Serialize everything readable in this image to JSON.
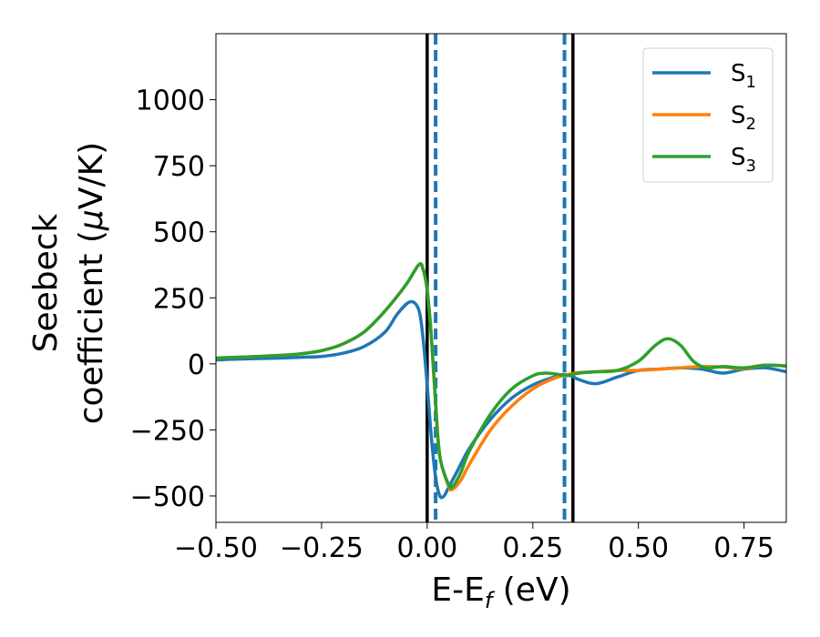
{
  "chart_data": {
    "type": "line",
    "xlabel": "E-E",
    "xlabel_subscript": "f",
    "xlabel_unit": " (eV)",
    "ylabel_line1": "Seebeck",
    "ylabel_line2": "coefficient  (",
    "ylabel_mu": "μ",
    "ylabel_unit": "V/K)",
    "xlim": [
      -0.5,
      0.85
    ],
    "ylim": [
      -600,
      1250
    ],
    "xticks": [
      -0.5,
      -0.25,
      0.0,
      0.25,
      0.5,
      0.75
    ],
    "xtick_labels": [
      "−0.50",
      "−0.25",
      "0.00",
      "0.25",
      "0.50",
      "0.75"
    ],
    "yticks": [
      -500,
      -250,
      0,
      250,
      500,
      750,
      1000
    ],
    "ytick_labels": [
      "−500",
      "−250",
      "0",
      "250",
      "500",
      "750",
      "1000"
    ],
    "grid": false,
    "legend_position": "top-right",
    "vertical_lines": [
      {
        "x": 0.0,
        "style": "solid",
        "color": "#000000"
      },
      {
        "x": 0.02,
        "style": "dashed",
        "color": "#1f77b4"
      },
      {
        "x": 0.325,
        "style": "dashed",
        "color": "#1f77b4"
      },
      {
        "x": 0.345,
        "style": "solid",
        "color": "#000000"
      }
    ],
    "series": [
      {
        "name": "S",
        "subscript": "1",
        "color": "#1f77b4",
        "points": [
          [
            -0.5,
            15
          ],
          [
            -0.45,
            18
          ],
          [
            -0.4,
            20
          ],
          [
            -0.35,
            22
          ],
          [
            -0.3,
            25
          ],
          [
            -0.25,
            28
          ],
          [
            -0.2,
            40
          ],
          [
            -0.15,
            65
          ],
          [
            -0.1,
            120
          ],
          [
            -0.07,
            190
          ],
          [
            -0.04,
            235
          ],
          [
            -0.02,
            205
          ],
          [
            -0.01,
            100
          ],
          [
            0.0,
            -80
          ],
          [
            0.01,
            -280
          ],
          [
            0.02,
            -430
          ],
          [
            0.03,
            -500
          ],
          [
            0.04,
            -500
          ],
          [
            0.05,
            -470
          ],
          [
            0.07,
            -410
          ],
          [
            0.1,
            -320
          ],
          [
            0.15,
            -210
          ],
          [
            0.2,
            -130
          ],
          [
            0.25,
            -80
          ],
          [
            0.3,
            -50
          ],
          [
            0.33,
            -40
          ],
          [
            0.36,
            -60
          ],
          [
            0.4,
            -75
          ],
          [
            0.45,
            -50
          ],
          [
            0.5,
            -25
          ],
          [
            0.55,
            -20
          ],
          [
            0.6,
            -15
          ],
          [
            0.65,
            -20
          ],
          [
            0.7,
            -35
          ],
          [
            0.75,
            -20
          ],
          [
            0.8,
            -15
          ],
          [
            0.85,
            -30
          ]
        ]
      },
      {
        "name": "S",
        "subscript": "2",
        "color": "#ff7f0e",
        "points": [
          [
            -0.5,
            22
          ],
          [
            -0.45,
            25
          ],
          [
            -0.4,
            28
          ],
          [
            -0.35,
            32
          ],
          [
            -0.3,
            38
          ],
          [
            -0.25,
            50
          ],
          [
            -0.2,
            75
          ],
          [
            -0.15,
            120
          ],
          [
            -0.1,
            200
          ],
          [
            -0.05,
            300
          ],
          [
            -0.02,
            375
          ],
          [
            -0.01,
            360
          ],
          [
            0.0,
            280
          ],
          [
            0.01,
            100
          ],
          [
            0.02,
            -150
          ],
          [
            0.03,
            -350
          ],
          [
            0.05,
            -460
          ],
          [
            0.06,
            -475
          ],
          [
            0.08,
            -440
          ],
          [
            0.1,
            -380
          ],
          [
            0.15,
            -250
          ],
          [
            0.2,
            -160
          ],
          [
            0.25,
            -95
          ],
          [
            0.3,
            -55
          ],
          [
            0.35,
            -35
          ],
          [
            0.4,
            -30
          ],
          [
            0.45,
            -25
          ],
          [
            0.5,
            -25
          ],
          [
            0.55,
            -20
          ],
          [
            0.6,
            -15
          ],
          [
            0.65,
            -10
          ],
          [
            0.7,
            -12
          ],
          [
            0.75,
            -18
          ],
          [
            0.8,
            -5
          ],
          [
            0.85,
            -8
          ]
        ]
      },
      {
        "name": "S",
        "subscript": "3",
        "color": "#2ca02c",
        "points": [
          [
            -0.5,
            22
          ],
          [
            -0.45,
            25
          ],
          [
            -0.4,
            28
          ],
          [
            -0.35,
            32
          ],
          [
            -0.3,
            38
          ],
          [
            -0.25,
            50
          ],
          [
            -0.2,
            75
          ],
          [
            -0.15,
            120
          ],
          [
            -0.1,
            200
          ],
          [
            -0.05,
            300
          ],
          [
            -0.02,
            375
          ],
          [
            -0.01,
            360
          ],
          [
            0.0,
            280
          ],
          [
            0.01,
            100
          ],
          [
            0.02,
            -150
          ],
          [
            0.03,
            -350
          ],
          [
            0.05,
            -455
          ],
          [
            0.06,
            -465
          ],
          [
            0.08,
            -410
          ],
          [
            0.1,
            -330
          ],
          [
            0.15,
            -190
          ],
          [
            0.2,
            -95
          ],
          [
            0.25,
            -45
          ],
          [
            0.28,
            -35
          ],
          [
            0.31,
            -40
          ],
          [
            0.33,
            -45
          ],
          [
            0.36,
            -35
          ],
          [
            0.4,
            -30
          ],
          [
            0.45,
            -25
          ],
          [
            0.5,
            10
          ],
          [
            0.54,
            70
          ],
          [
            0.57,
            95
          ],
          [
            0.6,
            70
          ],
          [
            0.63,
            10
          ],
          [
            0.66,
            -15
          ],
          [
            0.7,
            -10
          ],
          [
            0.75,
            -15
          ],
          [
            0.8,
            -5
          ],
          [
            0.85,
            -8
          ]
        ]
      }
    ]
  }
}
